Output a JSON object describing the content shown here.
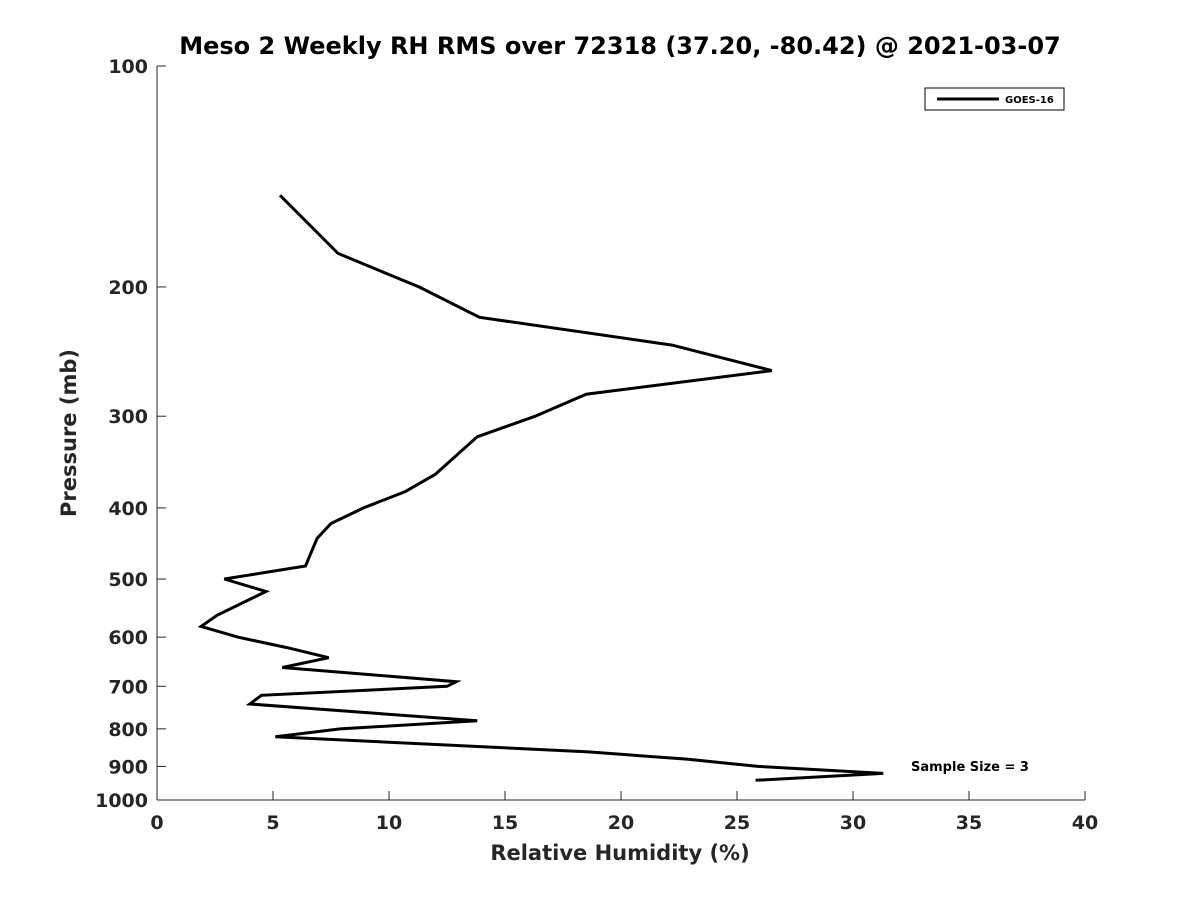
{
  "chart_data": {
    "type": "line",
    "title": "Meso 2 Weekly RH RMS over 72318 (37.20, -80.42) @ 2021-03-07",
    "xlabel": "Relative Humidity (%)",
    "ylabel": "Pressure (mb)",
    "xlim": [
      0,
      40
    ],
    "ylim": [
      1000,
      100
    ],
    "y_scale": "log",
    "y_reversed": true,
    "grid": false,
    "legend_position": "top-right",
    "x_ticks": [
      "0",
      "5",
      "10",
      "15",
      "20",
      "25",
      "30",
      "35",
      "40"
    ],
    "y_ticks": [
      "100",
      "200",
      "300",
      "400",
      "500",
      "600",
      "700",
      "800",
      "900",
      "1000"
    ],
    "series": [
      {
        "name": "GOES-16",
        "color": "#000000",
        "points": [
          {
            "x": 5.3,
            "y": 150
          },
          {
            "x": 7.8,
            "y": 180
          },
          {
            "x": 11.3,
            "y": 200
          },
          {
            "x": 13.9,
            "y": 220
          },
          {
            "x": 22.2,
            "y": 240
          },
          {
            "x": 26.5,
            "y": 260
          },
          {
            "x": 18.5,
            "y": 280
          },
          {
            "x": 16.3,
            "y": 300
          },
          {
            "x": 13.8,
            "y": 320
          },
          {
            "x": 12.0,
            "y": 360
          },
          {
            "x": 10.7,
            "y": 380
          },
          {
            "x": 8.9,
            "y": 400
          },
          {
            "x": 7.5,
            "y": 420
          },
          {
            "x": 6.9,
            "y": 440
          },
          {
            "x": 6.4,
            "y": 480
          },
          {
            "x": 2.9,
            "y": 500
          },
          {
            "x": 4.7,
            "y": 520
          },
          {
            "x": 2.6,
            "y": 560
          },
          {
            "x": 1.9,
            "y": 580
          },
          {
            "x": 3.5,
            "y": 600
          },
          {
            "x": 5.6,
            "y": 620
          },
          {
            "x": 7.4,
            "y": 640
          },
          {
            "x": 5.4,
            "y": 660
          },
          {
            "x": 12.9,
            "y": 690
          },
          {
            "x": 12.5,
            "y": 700
          },
          {
            "x": 4.5,
            "y": 720
          },
          {
            "x": 4.0,
            "y": 740
          },
          {
            "x": 13.8,
            "y": 780
          },
          {
            "x": 7.9,
            "y": 800
          },
          {
            "x": 5.1,
            "y": 820
          },
          {
            "x": 18.6,
            "y": 860
          },
          {
            "x": 22.9,
            "y": 880
          },
          {
            "x": 25.9,
            "y": 900
          },
          {
            "x": 31.3,
            "y": 920
          },
          {
            "x": 25.8,
            "y": 940
          }
        ]
      }
    ],
    "annotations": [
      {
        "text": "Sample Size = 3",
        "x": 32.5,
        "y": 900
      }
    ]
  }
}
